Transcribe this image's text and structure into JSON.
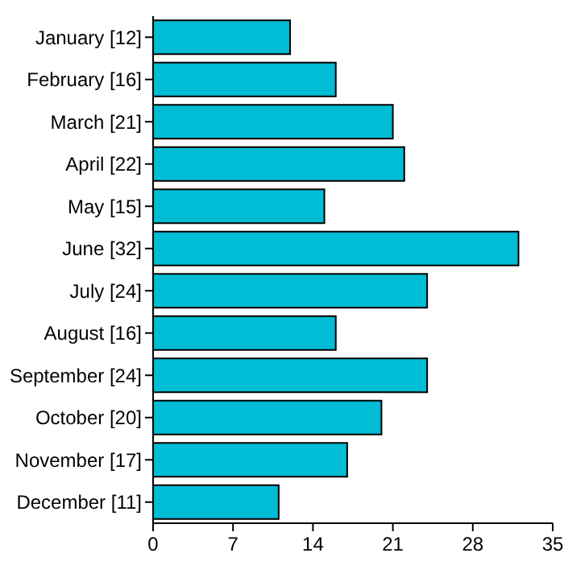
{
  "chart_data": {
    "type": "bar",
    "orientation": "horizontal",
    "categories": [
      "January [12]",
      "February [16]",
      "March [21]",
      "April [22]",
      "May [15]",
      "June [32]",
      "July [24]",
      "August [16]",
      "September [24]",
      "October [20]",
      "November [17]",
      "December [11]"
    ],
    "values": [
      12,
      16,
      21,
      22,
      15,
      32,
      24,
      16,
      24,
      20,
      17,
      11
    ],
    "color": "#00bcd4",
    "xlim": [
      0,
      35
    ],
    "xticks": [
      0,
      7,
      14,
      21,
      28,
      35
    ]
  }
}
